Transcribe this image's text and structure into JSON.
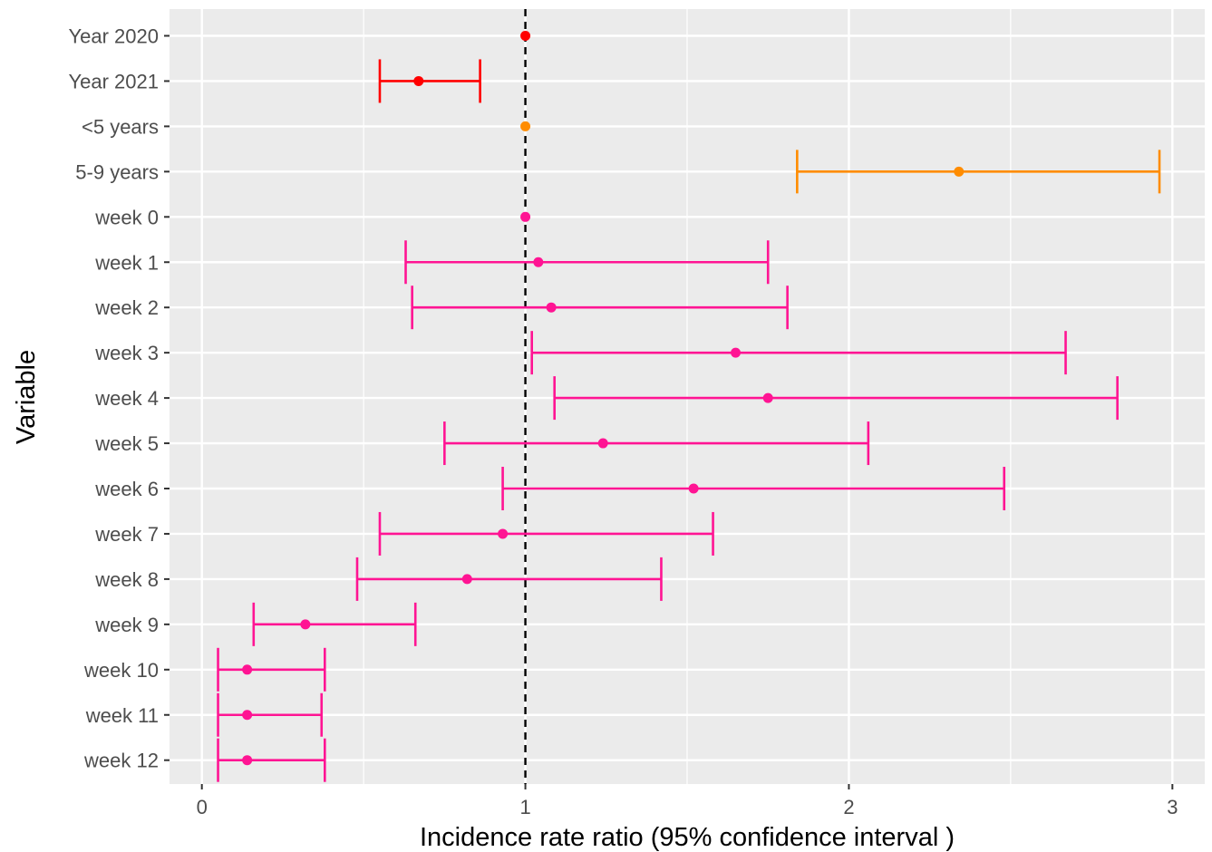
{
  "chart_data": {
    "type": "forest",
    "xlabel": "Incidence rate ratio (95% confidence interval )",
    "ylabel": "Variable",
    "xlim": [
      -0.1,
      3.1
    ],
    "x_ticks": [
      0,
      1,
      2,
      3
    ],
    "x_tick_labels": [
      "0",
      "1",
      "2",
      "3"
    ],
    "reference_line": 1,
    "grid": true,
    "rows": [
      {
        "label": "Year 2020",
        "estimate": 1.0,
        "lower": null,
        "upper": null,
        "color": "#ff0000"
      },
      {
        "label": "Year 2021",
        "estimate": 0.67,
        "lower": 0.55,
        "upper": 0.86,
        "color": "#ff0000"
      },
      {
        "label": "<5 years",
        "estimate": 1.0,
        "lower": null,
        "upper": null,
        "color": "#ff8c00"
      },
      {
        "label": "5-9 years",
        "estimate": 2.34,
        "lower": 1.84,
        "upper": 2.96,
        "color": "#ff8c00"
      },
      {
        "label": "week 0",
        "estimate": 1.0,
        "lower": null,
        "upper": null,
        "color": "#ff1493"
      },
      {
        "label": "week 1",
        "estimate": 1.04,
        "lower": 0.63,
        "upper": 1.75,
        "color": "#ff1493"
      },
      {
        "label": "week 2",
        "estimate": 1.08,
        "lower": 0.65,
        "upper": 1.81,
        "color": "#ff1493"
      },
      {
        "label": "week 3",
        "estimate": 1.65,
        "lower": 1.02,
        "upper": 2.67,
        "color": "#ff1493"
      },
      {
        "label": "week 4",
        "estimate": 1.75,
        "lower": 1.09,
        "upper": 2.83,
        "color": "#ff1493"
      },
      {
        "label": "week 5",
        "estimate": 1.24,
        "lower": 0.75,
        "upper": 2.06,
        "color": "#ff1493"
      },
      {
        "label": "week 6",
        "estimate": 1.52,
        "lower": 0.93,
        "upper": 2.48,
        "color": "#ff1493"
      },
      {
        "label": "week 7",
        "estimate": 0.93,
        "lower": 0.55,
        "upper": 1.58,
        "color": "#ff1493"
      },
      {
        "label": "week 8",
        "estimate": 0.82,
        "lower": 0.48,
        "upper": 1.42,
        "color": "#ff1493"
      },
      {
        "label": "week 9",
        "estimate": 0.32,
        "lower": 0.16,
        "upper": 0.66,
        "color": "#ff1493"
      },
      {
        "label": "week 10",
        "estimate": 0.14,
        "lower": 0.05,
        "upper": 0.38,
        "color": "#ff1493"
      },
      {
        "label": "week 11",
        "estimate": 0.14,
        "lower": 0.05,
        "upper": 0.37,
        "color": "#ff1493"
      },
      {
        "label": "week 12",
        "estimate": 0.14,
        "lower": 0.05,
        "upper": 0.38,
        "color": "#ff1493"
      }
    ]
  }
}
